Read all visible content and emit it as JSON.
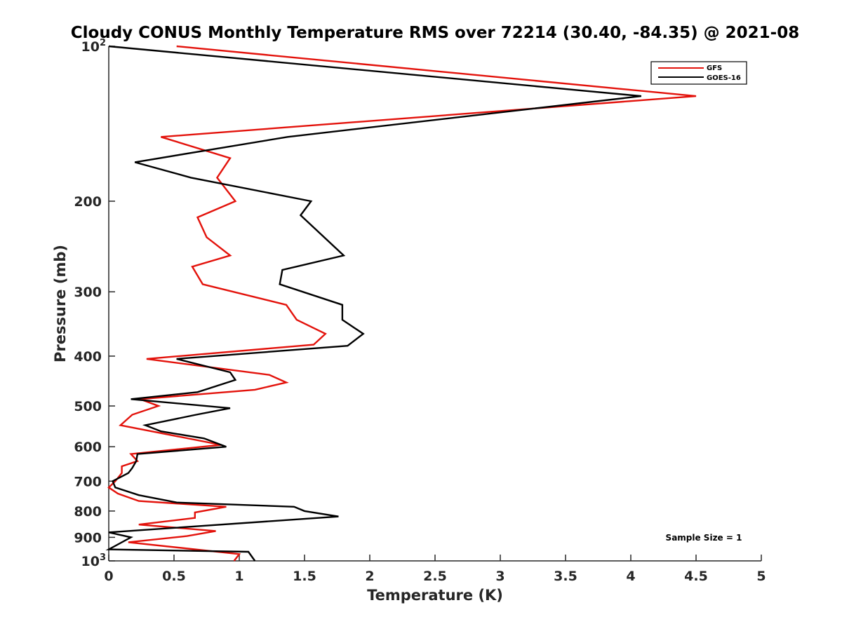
{
  "chart_data": {
    "type": "line",
    "title": "Cloudy CONUS Monthly Temperature RMS over 72214 (30.40, -84.35) @ 2021-08",
    "xlabel": "Temperature (K)",
    "ylabel": "Pressure (mb)",
    "xlim": [
      0,
      5
    ],
    "ylim": [
      100,
      1000
    ],
    "yscale": "log",
    "yreversed": true,
    "xticks": [
      0,
      0.5,
      1,
      1.5,
      2,
      2.5,
      3,
      3.5,
      4,
      4.5,
      5
    ],
    "xtick_labels": [
      "0",
      "0.5",
      "1",
      "1.5",
      "2",
      "2.5",
      "3",
      "3.5",
      "4",
      "4.5",
      "5"
    ],
    "yticks": [
      100,
      200,
      300,
      400,
      500,
      600,
      700,
      800,
      900,
      1000
    ],
    "ytick_labels": [
      {
        "base": "10",
        "exp": "2"
      },
      {
        "base": "200",
        "exp": ""
      },
      {
        "base": "300",
        "exp": ""
      },
      {
        "base": "400",
        "exp": ""
      },
      {
        "base": "500",
        "exp": ""
      },
      {
        "base": "600",
        "exp": ""
      },
      {
        "base": "700",
        "exp": ""
      },
      {
        "base": "800",
        "exp": ""
      },
      {
        "base": "900",
        "exp": ""
      },
      {
        "base": "10",
        "exp": "3"
      }
    ],
    "legend_position": "top-right",
    "annotation": "Sample Size = 1",
    "series": [
      {
        "name": "GFS",
        "color": "#e3120b",
        "points": [
          [
            0.52,
            100
          ],
          [
            4.5,
            125
          ],
          [
            0.4,
            150
          ],
          [
            0.93,
            165
          ],
          [
            0.83,
            180
          ],
          [
            0.97,
            200
          ],
          [
            0.68,
            215
          ],
          [
            0.75,
            235
          ],
          [
            0.93,
            255
          ],
          [
            0.64,
            268
          ],
          [
            0.72,
            290
          ],
          [
            1.36,
            318
          ],
          [
            1.44,
            340
          ],
          [
            1.66,
            362
          ],
          [
            1.57,
            380
          ],
          [
            0.29,
            405
          ],
          [
            1.23,
            435
          ],
          [
            1.36,
            450
          ],
          [
            1.12,
            465
          ],
          [
            0.24,
            485
          ],
          [
            0.38,
            500
          ],
          [
            0.18,
            520
          ],
          [
            0.09,
            545
          ],
          [
            0.86,
            595
          ],
          [
            0.17,
            620
          ],
          [
            0.22,
            640
          ],
          [
            0.1,
            655
          ],
          [
            0.1,
            675
          ],
          [
            0.05,
            700
          ],
          [
            0.0,
            720
          ],
          [
            0.07,
            740
          ],
          [
            0.23,
            765
          ],
          [
            0.9,
            785
          ],
          [
            0.66,
            805
          ],
          [
            0.66,
            825
          ],
          [
            0.23,
            850
          ],
          [
            0.82,
            875
          ],
          [
            0.6,
            895
          ],
          [
            0.15,
            920
          ],
          [
            1.0,
            970
          ],
          [
            0.96,
            1000
          ]
        ]
      },
      {
        "name": "GOES-16",
        "color": "#000000",
        "points": [
          [
            0.0,
            100
          ],
          [
            4.08,
            125
          ],
          [
            1.37,
            150
          ],
          [
            0.2,
            168
          ],
          [
            0.63,
            180
          ],
          [
            1.55,
            200
          ],
          [
            1.47,
            213
          ],
          [
            1.8,
            255
          ],
          [
            1.33,
            272
          ],
          [
            1.31,
            290
          ],
          [
            1.79,
            318
          ],
          [
            1.79,
            340
          ],
          [
            1.95,
            362
          ],
          [
            1.83,
            382
          ],
          [
            0.52,
            405
          ],
          [
            0.93,
            430
          ],
          [
            0.97,
            445
          ],
          [
            0.68,
            470
          ],
          [
            0.17,
            485
          ],
          [
            0.93,
            505
          ],
          [
            0.67,
            520
          ],
          [
            0.28,
            545
          ],
          [
            0.4,
            560
          ],
          [
            0.73,
            578
          ],
          [
            0.9,
            600
          ],
          [
            0.22,
            620
          ],
          [
            0.21,
            640
          ],
          [
            0.18,
            660
          ],
          [
            0.15,
            675
          ],
          [
            0.03,
            700
          ],
          [
            0.05,
            720
          ],
          [
            0.23,
            745
          ],
          [
            0.52,
            770
          ],
          [
            1.42,
            785
          ],
          [
            1.5,
            800
          ],
          [
            1.76,
            820
          ],
          [
            0.0,
            880
          ],
          [
            0.17,
            900
          ],
          [
            0.0,
            950
          ],
          [
            1.07,
            960
          ],
          [
            1.12,
            1000
          ]
        ]
      }
    ]
  }
}
